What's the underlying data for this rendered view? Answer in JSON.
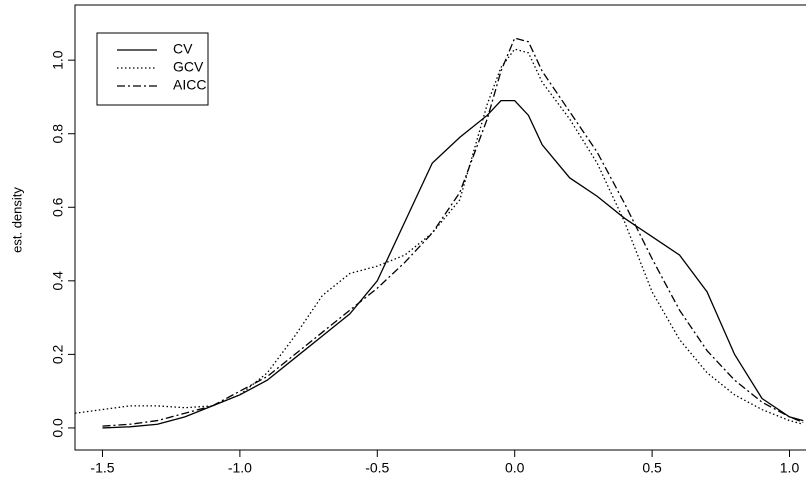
{
  "chart_data": {
    "type": "line",
    "y_label": "est. density",
    "x": [
      -1.6,
      -1.5,
      -1.4,
      -1.3,
      -1.2,
      -1.1,
      -1.0,
      -0.9,
      -0.8,
      -0.7,
      -0.6,
      -0.5,
      -0.4,
      -0.3,
      -0.2,
      -0.1,
      -0.05,
      0,
      0.05,
      0.1,
      0.2,
      0.3,
      0.4,
      0.5,
      0.6,
      0.7,
      0.8,
      0.9,
      1.0,
      1.05
    ],
    "series": [
      {
        "name": "CV",
        "color": "#000000",
        "dash": "solid",
        "values": [
          null,
          0.0,
          0.003,
          0.01,
          0.03,
          0.06,
          0.09,
          0.13,
          0.19,
          0.25,
          0.31,
          0.4,
          0.56,
          0.72,
          0.79,
          0.85,
          0.89,
          0.89,
          0.85,
          0.77,
          0.68,
          0.63,
          0.57,
          0.52,
          0.47,
          0.37,
          0.2,
          0.08,
          0.03,
          0.02
        ]
      },
      {
        "name": "GCV",
        "color": "#000000",
        "dash": "dotted",
        "values": [
          0.04,
          0.05,
          0.06,
          0.06,
          0.055,
          0.06,
          0.09,
          0.15,
          0.25,
          0.36,
          0.42,
          0.44,
          0.47,
          0.53,
          0.62,
          0.88,
          0.98,
          1.03,
          1.02,
          0.94,
          0.84,
          0.72,
          0.56,
          0.37,
          0.24,
          0.15,
          0.09,
          0.05,
          0.02,
          0.01
        ]
      },
      {
        "name": "AICC",
        "color": "#000000",
        "dash": "dashdot",
        "values": [
          null,
          0.005,
          0.01,
          0.02,
          0.04,
          0.06,
          0.1,
          0.14,
          0.2,
          0.26,
          0.32,
          0.38,
          0.45,
          0.53,
          0.64,
          0.84,
          0.97,
          1.06,
          1.05,
          0.97,
          0.86,
          0.75,
          0.61,
          0.46,
          0.32,
          0.21,
          0.13,
          0.07,
          0.03,
          0.015
        ]
      }
    ],
    "xlim": [
      -1.6,
      1.06
    ],
    "ylim": [
      -0.06,
      1.15
    ],
    "xticks": [
      -1.5,
      {
        "value": -1.0,
        "label": "-1.0"
      },
      -0.5,
      {
        "value": 0,
        "label": "0.0"
      },
      0.5,
      {
        "value": 1.0,
        "label": "1.0"
      }
    ],
    "yticks": [
      {
        "value": 0,
        "label": "0.0"
      },
      0.2,
      0.4,
      0.6,
      0.8,
      {
        "value": 1.0,
        "label": "1.0"
      }
    ],
    "legend": "top-left"
  }
}
